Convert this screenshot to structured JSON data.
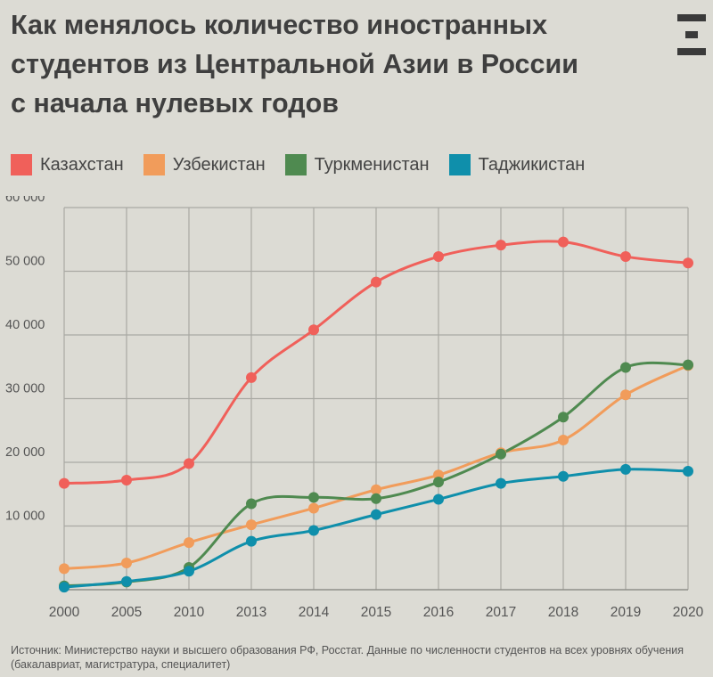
{
  "title": {
    "line1": "Как менялось количество иностранных",
    "line2": "студентов из Центральной Азии в России",
    "line3": "с начала нулевых годов"
  },
  "logo": {
    "icon": "e-logo-icon"
  },
  "source": "Источник: Министерство науки и высшего образования РФ, Росстат. Данные по численности студентов на всех уровнях обучения (бакалавриат, магистратура, специалитет)",
  "chart_data": {
    "type": "line",
    "title": "Как менялось количество иностранных студентов из Центральной Азии в России с начала нулевых годов",
    "xlabel": "",
    "ylabel": "",
    "categories": [
      "2000",
      "2005",
      "2010",
      "2013",
      "2014",
      "2015",
      "2016",
      "2017",
      "2018",
      "2019",
      "2020"
    ],
    "ylim": [
      0,
      60000
    ],
    "yticks": [
      0,
      10000,
      20000,
      30000,
      40000,
      50000,
      60000
    ],
    "ytick_labels": [
      "",
      "10 000",
      "20 000",
      "30 000",
      "40 000",
      "50 000",
      "60 000"
    ],
    "grid": true,
    "legend_position": "top-left",
    "series": [
      {
        "name": "Казахстан",
        "color": "#f0605a",
        "values": [
          16700,
          17200,
          19800,
          33300,
          40800,
          48300,
          52300,
          54100,
          54600,
          52300,
          51300
        ]
      },
      {
        "name": "Узбекистан",
        "color": "#f19c5b",
        "values": [
          3300,
          4200,
          7400,
          10200,
          12800,
          15700,
          18000,
          21500,
          23500,
          30600,
          35200
        ]
      },
      {
        "name": "Туркменистан",
        "color": "#4f8a50",
        "values": [
          600,
          1200,
          3500,
          13500,
          14500,
          14300,
          16900,
          21300,
          27100,
          34900,
          35300
        ]
      },
      {
        "name": "Таджикистан",
        "color": "#0f8fab",
        "values": [
          400,
          1300,
          2900,
          7600,
          9300,
          11800,
          14200,
          16700,
          17800,
          18900,
          18600
        ]
      }
    ]
  }
}
